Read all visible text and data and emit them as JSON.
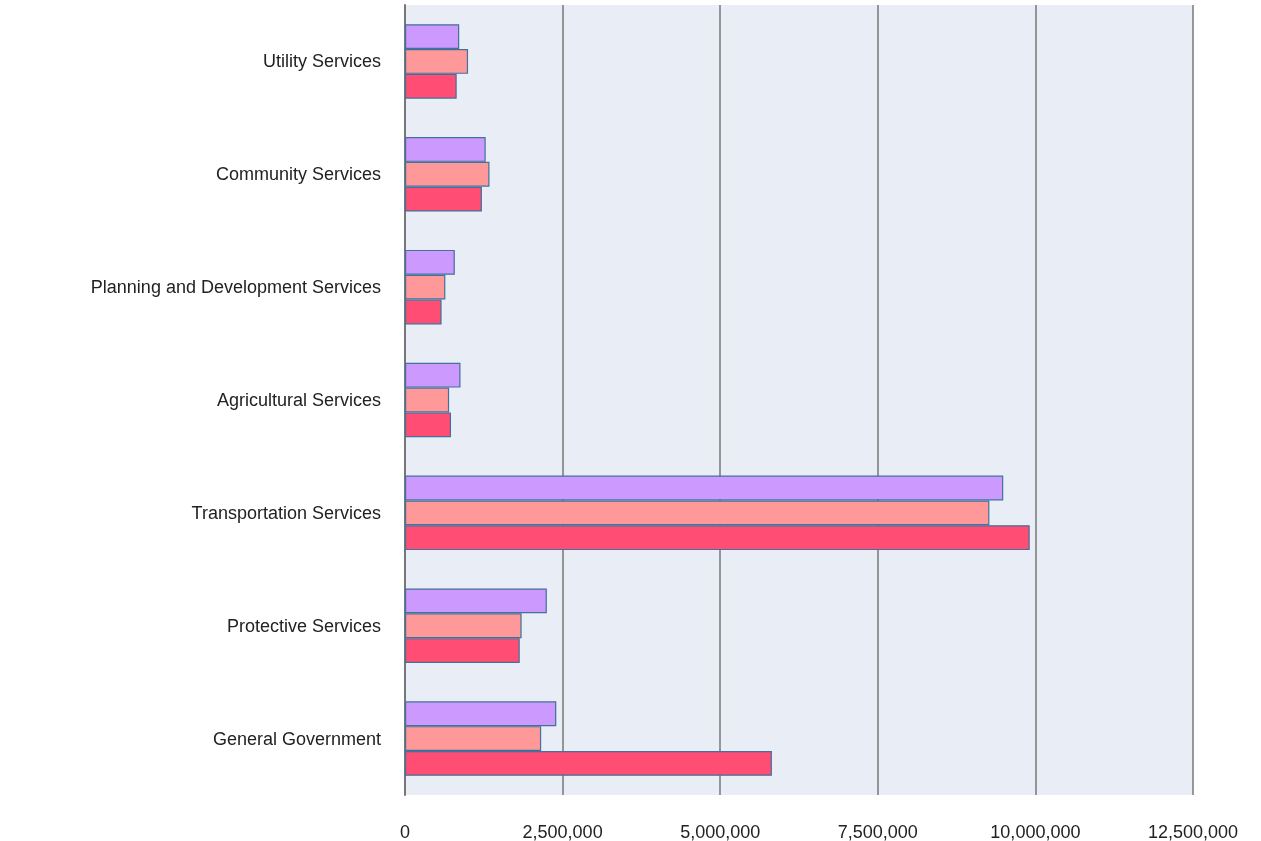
{
  "chart_data": {
    "type": "bar",
    "orientation": "horizontal",
    "categories": [
      "Utility Services",
      "Community Services",
      "Planning and Development Services",
      "Agricultural Services",
      "Transportation Services",
      "Protective Services",
      "General Government"
    ],
    "series": [
      {
        "color": "#cc99ff",
        "values": [
          860000,
          1280000,
          790000,
          880000,
          9490000,
          2250000,
          2400000
        ]
      },
      {
        "color": "#ff9999",
        "values": [
          1000000,
          1340000,
          640000,
          700000,
          9270000,
          1850000,
          2160000
        ]
      },
      {
        "color": "#ff4d73",
        "values": [
          820000,
          1220000,
          580000,
          730000,
          9910000,
          1820000,
          5820000
        ]
      }
    ],
    "xlim": [
      0,
      12500000
    ],
    "xticks": [
      {
        "value": 0,
        "label": "0"
      },
      {
        "value": 2500000,
        "label": "2,500,000"
      },
      {
        "value": 5000000,
        "label": "5,000,000"
      },
      {
        "value": 7500000,
        "label": "7,500,000"
      },
      {
        "value": 10000000,
        "label": "10,000,000"
      },
      {
        "value": 12500000,
        "label": "12,500,000"
      }
    ],
    "grid": "x"
  }
}
